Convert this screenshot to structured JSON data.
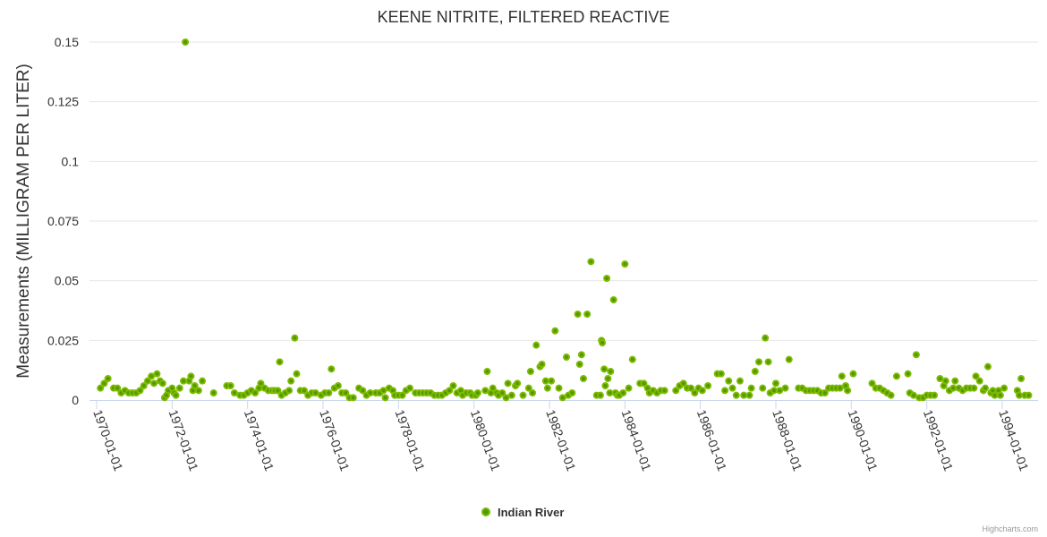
{
  "chart_data": {
    "type": "scatter",
    "title": "KEENE NITRITE, FILTERED REACTIVE",
    "ylabel": "Measurements (MILLIGRAM PER LITER)",
    "xlabel": "",
    "ylim": [
      0,
      0.15
    ],
    "yticks": [
      "0",
      "0.025",
      "0.05",
      "0.075",
      "0.1",
      "0.125",
      "0.15"
    ],
    "yticks_values": [
      0,
      0.025,
      0.05,
      0.075,
      0.1,
      0.125,
      0.15
    ],
    "xlim": [
      1969.8,
      1994.6
    ],
    "xticks": [
      "1970-01-01",
      "1972-01-01",
      "1974-01-01",
      "1976-01-01",
      "1978-01-01",
      "1980-01-01",
      "1982-01-01",
      "1984-01-01",
      "1986-01-01",
      "1988-01-01",
      "1990-01-01",
      "1992-01-01",
      "1994-01-01"
    ],
    "xticks_values": [
      1970,
      1972,
      1974,
      1976,
      1978,
      1980,
      1982,
      1984,
      1986,
      1988,
      1990,
      1992,
      1994
    ],
    "grid": true,
    "legend": "bottom-center",
    "color": "#7cb5ec",
    "marker_color": "#4f9a00",
    "marker_stroke": "#7fba00",
    "credit": "Highcharts.com",
    "series": [
      {
        "name": "Indian River",
        "points": [
          [
            1970.1,
            0.005
          ],
          [
            1970.2,
            0.007
          ],
          [
            1970.3,
            0.009
          ],
          [
            1970.45,
            0.005
          ],
          [
            1970.55,
            0.005
          ],
          [
            1970.65,
            0.003
          ],
          [
            1970.75,
            0.004
          ],
          [
            1970.85,
            0.003
          ],
          [
            1970.95,
            0.003
          ],
          [
            1971.05,
            0.003
          ],
          [
            1971.15,
            0.004
          ],
          [
            1971.25,
            0.006
          ],
          [
            1971.35,
            0.008
          ],
          [
            1971.45,
            0.01
          ],
          [
            1971.52,
            0.007
          ],
          [
            1971.6,
            0.011
          ],
          [
            1971.68,
            0.008
          ],
          [
            1971.75,
            0.007
          ],
          [
            1971.8,
            0.001
          ],
          [
            1971.85,
            0.002
          ],
          [
            1971.9,
            0.004
          ],
          [
            1972.0,
            0.005
          ],
          [
            1972.05,
            0.003
          ],
          [
            1972.1,
            0.002
          ],
          [
            1972.2,
            0.005
          ],
          [
            1972.3,
            0.008
          ],
          [
            1972.35,
            0.15
          ],
          [
            1972.45,
            0.008
          ],
          [
            1972.5,
            0.01
          ],
          [
            1972.55,
            0.004
          ],
          [
            1972.6,
            0.006
          ],
          [
            1972.7,
            0.004
          ],
          [
            1972.8,
            0.008
          ],
          [
            1973.1,
            0.003
          ],
          [
            1973.45,
            0.006
          ],
          [
            1973.55,
            0.006
          ],
          [
            1973.65,
            0.003
          ],
          [
            1973.8,
            0.002
          ],
          [
            1973.9,
            0.002
          ],
          [
            1974.0,
            0.003
          ],
          [
            1974.1,
            0.004
          ],
          [
            1974.2,
            0.003
          ],
          [
            1974.3,
            0.005
          ],
          [
            1974.35,
            0.007
          ],
          [
            1974.45,
            0.005
          ],
          [
            1974.55,
            0.004
          ],
          [
            1974.65,
            0.004
          ],
          [
            1974.72,
            0.004
          ],
          [
            1974.8,
            0.004
          ],
          [
            1974.85,
            0.016
          ],
          [
            1974.9,
            0.002
          ],
          [
            1975.0,
            0.003
          ],
          [
            1975.1,
            0.004
          ],
          [
            1975.15,
            0.008
          ],
          [
            1975.25,
            0.026
          ],
          [
            1975.3,
            0.011
          ],
          [
            1975.4,
            0.004
          ],
          [
            1975.5,
            0.004
          ],
          [
            1975.6,
            0.002
          ],
          [
            1975.7,
            0.003
          ],
          [
            1975.8,
            0.003
          ],
          [
            1975.95,
            0.002
          ],
          [
            1976.05,
            0.003
          ],
          [
            1976.15,
            0.003
          ],
          [
            1976.22,
            0.013
          ],
          [
            1976.3,
            0.005
          ],
          [
            1976.4,
            0.006
          ],
          [
            1976.5,
            0.003
          ],
          [
            1976.6,
            0.003
          ],
          [
            1976.7,
            0.001
          ],
          [
            1976.8,
            0.001
          ],
          [
            1976.95,
            0.005
          ],
          [
            1977.05,
            0.004
          ],
          [
            1977.15,
            0.002
          ],
          [
            1977.25,
            0.003
          ],
          [
            1977.4,
            0.003
          ],
          [
            1977.5,
            0.003
          ],
          [
            1977.6,
            0.004
          ],
          [
            1977.65,
            0.001
          ],
          [
            1977.75,
            0.005
          ],
          [
            1977.85,
            0.004
          ],
          [
            1977.9,
            0.002
          ],
          [
            1978.0,
            0.002
          ],
          [
            1978.1,
            0.002
          ],
          [
            1978.2,
            0.004
          ],
          [
            1978.3,
            0.005
          ],
          [
            1978.45,
            0.003
          ],
          [
            1978.55,
            0.003
          ],
          [
            1978.65,
            0.003
          ],
          [
            1978.75,
            0.003
          ],
          [
            1978.85,
            0.003
          ],
          [
            1978.95,
            0.002
          ],
          [
            1979.05,
            0.002
          ],
          [
            1979.15,
            0.002
          ],
          [
            1979.25,
            0.003
          ],
          [
            1979.35,
            0.004
          ],
          [
            1979.45,
            0.006
          ],
          [
            1979.55,
            0.003
          ],
          [
            1979.65,
            0.004
          ],
          [
            1979.7,
            0.002
          ],
          [
            1979.8,
            0.003
          ],
          [
            1979.9,
            0.003
          ],
          [
            1979.95,
            0.002
          ],
          [
            1980.05,
            0.002
          ],
          [
            1980.1,
            0.003
          ],
          [
            1980.3,
            0.004
          ],
          [
            1980.35,
            0.012
          ],
          [
            1980.45,
            0.003
          ],
          [
            1980.5,
            0.005
          ],
          [
            1980.6,
            0.003
          ],
          [
            1980.65,
            0.002
          ],
          [
            1980.75,
            0.003
          ],
          [
            1980.85,
            0.001
          ],
          [
            1980.9,
            0.007
          ],
          [
            1981.0,
            0.002
          ],
          [
            1981.1,
            0.006
          ],
          [
            1981.15,
            0.007
          ],
          [
            1981.3,
            0.002
          ],
          [
            1981.45,
            0.005
          ],
          [
            1981.5,
            0.012
          ],
          [
            1981.55,
            0.003
          ],
          [
            1981.65,
            0.023
          ],
          [
            1981.75,
            0.014
          ],
          [
            1981.8,
            0.015
          ],
          [
            1981.9,
            0.008
          ],
          [
            1981.95,
            0.005
          ],
          [
            1982.05,
            0.008
          ],
          [
            1982.15,
            0.029
          ],
          [
            1982.25,
            0.005
          ],
          [
            1982.35,
            0.001
          ],
          [
            1982.45,
            0.018
          ],
          [
            1982.5,
            0.002
          ],
          [
            1982.6,
            0.003
          ],
          [
            1982.75,
            0.036
          ],
          [
            1982.8,
            0.015
          ],
          [
            1982.85,
            0.019
          ],
          [
            1982.9,
            0.009
          ],
          [
            1983.0,
            0.036
          ],
          [
            1983.1,
            0.058
          ],
          [
            1983.25,
            0.002
          ],
          [
            1983.35,
            0.002
          ],
          [
            1983.38,
            0.025
          ],
          [
            1983.4,
            0.024
          ],
          [
            1983.45,
            0.013
          ],
          [
            1983.48,
            0.006
          ],
          [
            1983.52,
            0.051
          ],
          [
            1983.55,
            0.009
          ],
          [
            1983.6,
            0.003
          ],
          [
            1983.62,
            0.012
          ],
          [
            1983.7,
            0.042
          ],
          [
            1983.75,
            0.003
          ],
          [
            1983.8,
            0.002
          ],
          [
            1983.85,
            0.002
          ],
          [
            1983.95,
            0.003
          ],
          [
            1984.0,
            0.057
          ],
          [
            1984.1,
            0.005
          ],
          [
            1984.2,
            0.017
          ],
          [
            1984.4,
            0.007
          ],
          [
            1984.5,
            0.007
          ],
          [
            1984.6,
            0.005
          ],
          [
            1984.65,
            0.003
          ],
          [
            1984.75,
            0.004
          ],
          [
            1984.85,
            0.003
          ],
          [
            1984.95,
            0.004
          ],
          [
            1985.05,
            0.004
          ],
          [
            1985.35,
            0.004
          ],
          [
            1985.45,
            0.006
          ],
          [
            1985.55,
            0.007
          ],
          [
            1985.65,
            0.005
          ],
          [
            1985.75,
            0.005
          ],
          [
            1985.85,
            0.003
          ],
          [
            1985.95,
            0.005
          ],
          [
            1986.05,
            0.004
          ],
          [
            1986.2,
            0.006
          ],
          [
            1986.45,
            0.011
          ],
          [
            1986.55,
            0.011
          ],
          [
            1986.65,
            0.004
          ],
          [
            1986.75,
            0.008
          ],
          [
            1986.85,
            0.005
          ],
          [
            1986.95,
            0.002
          ],
          [
            1987.05,
            0.008
          ],
          [
            1987.15,
            0.002
          ],
          [
            1987.3,
            0.002
          ],
          [
            1987.35,
            0.005
          ],
          [
            1987.45,
            0.012
          ],
          [
            1987.55,
            0.016
          ],
          [
            1987.65,
            0.005
          ],
          [
            1987.72,
            0.026
          ],
          [
            1987.8,
            0.016
          ],
          [
            1987.85,
            0.003
          ],
          [
            1987.95,
            0.004
          ],
          [
            1988.0,
            0.007
          ],
          [
            1988.1,
            0.004
          ],
          [
            1988.25,
            0.005
          ],
          [
            1988.35,
            0.017
          ],
          [
            1988.6,
            0.005
          ],
          [
            1988.7,
            0.005
          ],
          [
            1988.8,
            0.004
          ],
          [
            1988.9,
            0.004
          ],
          [
            1989.0,
            0.004
          ],
          [
            1989.1,
            0.004
          ],
          [
            1989.2,
            0.003
          ],
          [
            1989.3,
            0.003
          ],
          [
            1989.4,
            0.005
          ],
          [
            1989.5,
            0.005
          ],
          [
            1989.6,
            0.005
          ],
          [
            1989.7,
            0.005
          ],
          [
            1989.75,
            0.01
          ],
          [
            1989.85,
            0.006
          ],
          [
            1989.9,
            0.004
          ],
          [
            1990.05,
            0.011
          ],
          [
            1990.55,
            0.007
          ],
          [
            1990.65,
            0.005
          ],
          [
            1990.75,
            0.005
          ],
          [
            1990.85,
            0.004
          ],
          [
            1990.95,
            0.003
          ],
          [
            1991.05,
            0.002
          ],
          [
            1991.2,
            0.01
          ],
          [
            1991.5,
            0.011
          ],
          [
            1991.55,
            0.003
          ],
          [
            1991.65,
            0.002
          ],
          [
            1991.72,
            0.019
          ],
          [
            1991.8,
            0.001
          ],
          [
            1991.9,
            0.001
          ],
          [
            1992.0,
            0.002
          ],
          [
            1992.1,
            0.002
          ],
          [
            1992.2,
            0.002
          ],
          [
            1992.35,
            0.009
          ],
          [
            1992.45,
            0.006
          ],
          [
            1992.5,
            0.008
          ],
          [
            1992.6,
            0.004
          ],
          [
            1992.7,
            0.005
          ],
          [
            1992.75,
            0.008
          ],
          [
            1992.85,
            0.005
          ],
          [
            1992.95,
            0.004
          ],
          [
            1993.05,
            0.005
          ],
          [
            1993.15,
            0.005
          ],
          [
            1993.25,
            0.005
          ],
          [
            1993.3,
            0.01
          ],
          [
            1993.4,
            0.008
          ],
          [
            1993.5,
            0.004
          ],
          [
            1993.55,
            0.005
          ],
          [
            1993.62,
            0.014
          ],
          [
            1993.7,
            0.003
          ],
          [
            1993.75,
            0.004
          ],
          [
            1993.8,
            0.002
          ],
          [
            1993.9,
            0.004
          ],
          [
            1993.95,
            0.002
          ],
          [
            1994.05,
            0.005
          ],
          [
            1994.4,
            0.004
          ],
          [
            1994.45,
            0.002
          ],
          [
            1994.5,
            0.009
          ],
          [
            1994.6,
            0.002
          ],
          [
            1994.7,
            0.002
          ]
        ]
      }
    ]
  }
}
